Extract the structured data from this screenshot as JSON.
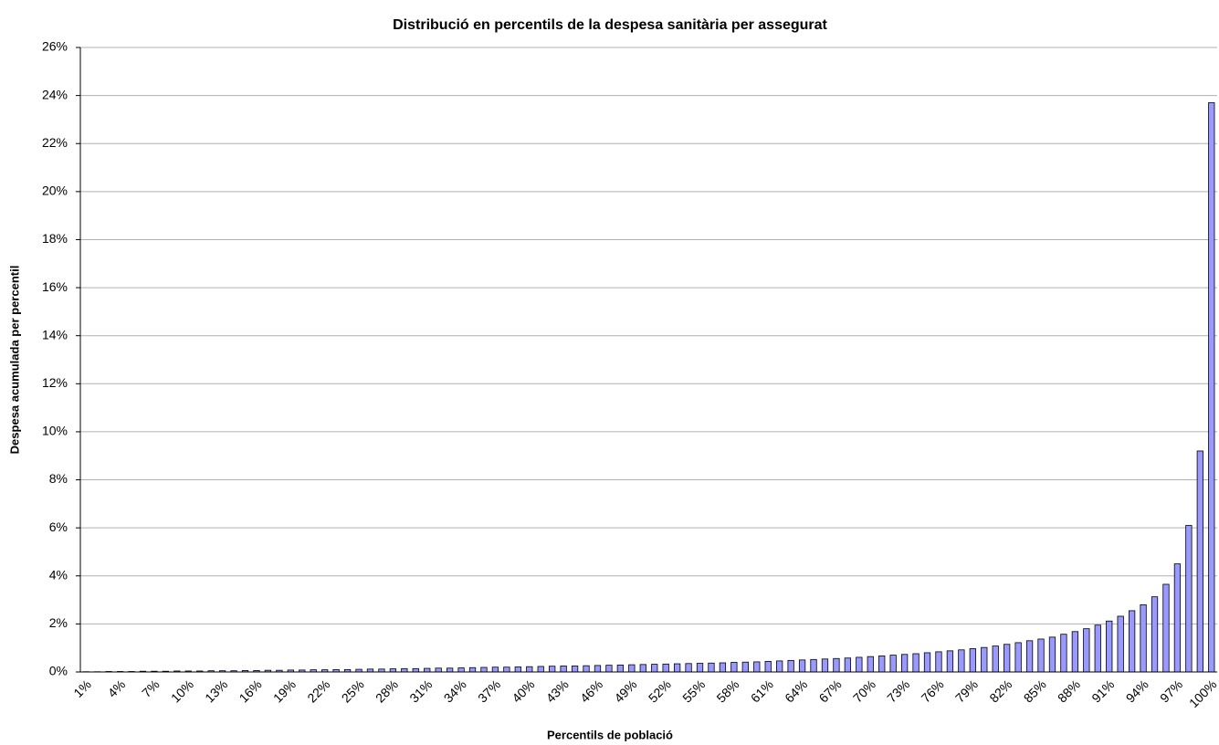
{
  "chart_data": {
    "type": "bar",
    "title": "Distribució en percentils de la despesa sanitària per assegurat",
    "x_label": "Percentils de població",
    "y_label": "Despesa acumulada per percentil",
    "categories": [
      "1%",
      null,
      null,
      "4%",
      null,
      null,
      "7%",
      null,
      null,
      "10%",
      null,
      null,
      "13%",
      null,
      null,
      "16%",
      null,
      null,
      "19%",
      null,
      null,
      "22%",
      null,
      null,
      "25%",
      null,
      null,
      "28%",
      null,
      null,
      "31%",
      null,
      null,
      "34%",
      null,
      null,
      "37%",
      null,
      null,
      "40%",
      null,
      null,
      "43%",
      null,
      null,
      "46%",
      null,
      null,
      "49%",
      null,
      null,
      "52%",
      null,
      null,
      "55%",
      null,
      null,
      "58%",
      null,
      null,
      "61%",
      null,
      null,
      "64%",
      null,
      null,
      "67%",
      null,
      null,
      "70%",
      null,
      null,
      "73%",
      null,
      null,
      "76%",
      null,
      null,
      "79%",
      null,
      null,
      "82%",
      null,
      null,
      "85%",
      null,
      null,
      "88%",
      null,
      null,
      "91%",
      null,
      null,
      "94%",
      null,
      null,
      "97%",
      null,
      null,
      "100%"
    ],
    "values": [
      0.01,
      0.01,
      0.02,
      0.02,
      0.02,
      0.03,
      0.03,
      0.03,
      0.04,
      0.04,
      0.04,
      0.05,
      0.05,
      0.05,
      0.06,
      0.06,
      0.07,
      0.07,
      0.08,
      0.08,
      0.09,
      0.09,
      0.1,
      0.1,
      0.11,
      0.12,
      0.12,
      0.13,
      0.14,
      0.14,
      0.15,
      0.16,
      0.16,
      0.17,
      0.18,
      0.19,
      0.2,
      0.2,
      0.21,
      0.22,
      0.23,
      0.24,
      0.25,
      0.25,
      0.26,
      0.27,
      0.28,
      0.29,
      0.3,
      0.31,
      0.32,
      0.33,
      0.34,
      0.35,
      0.36,
      0.37,
      0.38,
      0.4,
      0.41,
      0.42,
      0.44,
      0.46,
      0.48,
      0.5,
      0.52,
      0.54,
      0.56,
      0.58,
      0.61,
      0.64,
      0.67,
      0.7,
      0.73,
      0.76,
      0.8,
      0.84,
      0.88,
      0.92,
      0.97,
      1.02,
      1.08,
      1.15,
      1.22,
      1.3,
      1.37,
      1.45,
      1.57,
      1.68,
      1.8,
      1.95,
      2.12,
      2.32,
      2.55,
      2.8,
      3.13,
      3.65,
      4.5,
      6.1,
      9.2,
      23.7
    ],
    "color": "#9999ff",
    "ylim": [
      0,
      26
    ],
    "yticks": [
      {
        "value": 0,
        "label": "0%"
      },
      {
        "value": 2,
        "label": "2%"
      },
      {
        "value": 4,
        "label": "4%"
      },
      {
        "value": 6,
        "label": "6%"
      },
      {
        "value": 8,
        "label": "8%"
      },
      {
        "value": 10,
        "label": "10%"
      },
      {
        "value": 12,
        "label": "12%"
      },
      {
        "value": 14,
        "label": "14%"
      },
      {
        "value": 16,
        "label": "16%"
      },
      {
        "value": 18,
        "label": "18%"
      },
      {
        "value": 20,
        "label": "20%"
      },
      {
        "value": 22,
        "label": "22%"
      },
      {
        "value": 24,
        "label": "24%"
      },
      {
        "value": 26,
        "label": "26%"
      }
    ],
    "grid": true
  }
}
